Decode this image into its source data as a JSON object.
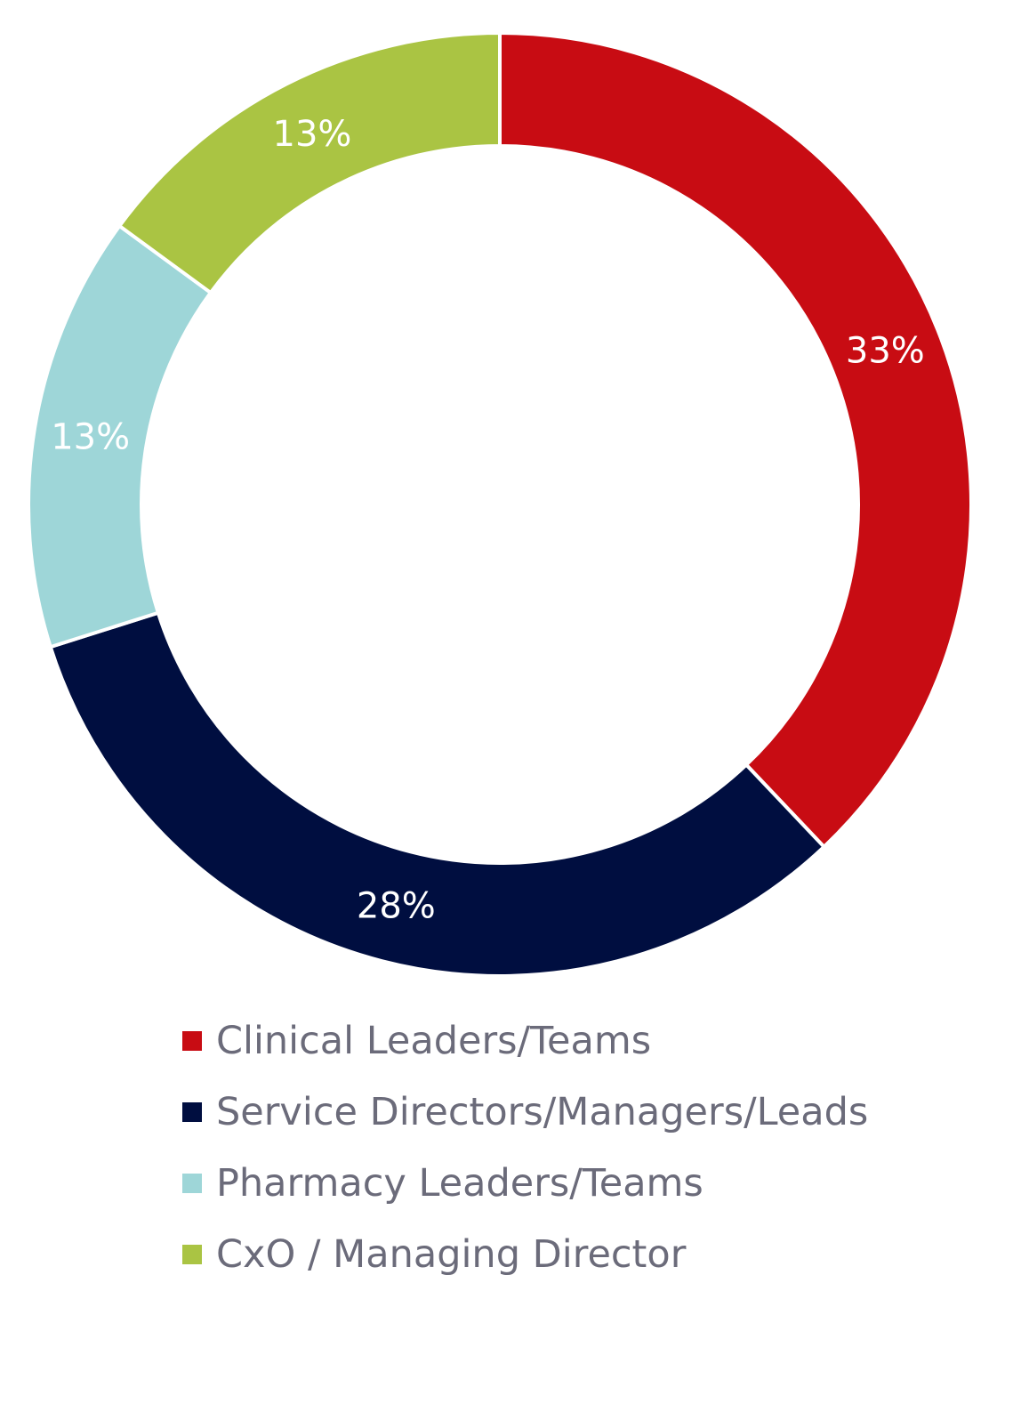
{
  "chart_data": {
    "type": "pie",
    "variant": "donut",
    "title": "",
    "categories": [
      "Clinical Leaders/Teams",
      "Service Directors/Managers/Leads",
      "Pharmacy Leaders/Teams",
      "CxO / Managing Director"
    ],
    "values": [
      33,
      28,
      13,
      13
    ],
    "data_labels": [
      "33%",
      "28%",
      "13%",
      "13%"
    ],
    "colors": [
      "#c80c13",
      "#000e40",
      "#9ed6d8",
      "#aac443"
    ],
    "legend_position": "bottom"
  }
}
